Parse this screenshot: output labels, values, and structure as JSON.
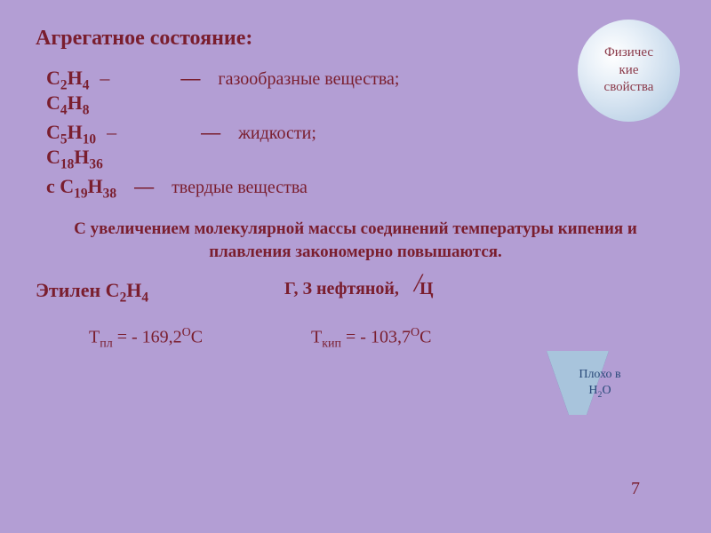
{
  "colors": {
    "background": "#b39ed4",
    "text_primary": "#7a1e2e",
    "circle_text": "#8b3a4a",
    "trap_border": "#3a5a8a",
    "trap_fill": "#a8c4dc",
    "trap_text": "#2a4a7a"
  },
  "badge": {
    "line1": "Физичес",
    "line2": "кие",
    "line3": "свойства"
  },
  "title": "Агрегатное состояние:",
  "formulas": {
    "f1a": "C",
    "f1b": "2",
    "f1c": "H",
    "f1d": "4",
    "dash1": "–",
    "sep1": "—",
    "d1": "газообразные вещества;",
    "f2a": "C",
    "f2b": "4",
    "f2c": "H",
    "f2d": "8",
    "f3a": "C",
    "f3b": "5",
    "f3c": "H",
    "f3d": "10",
    "dash2": "–",
    "sep2": "—",
    "d2": "жидкости;",
    "f4a": "C",
    "f4b": "18",
    "f4c": "H",
    "f4d": "36",
    "f5pre": "с ",
    "f5a": "C",
    "f5b": "19",
    "f5c": "H",
    "f5d": "38",
    "sep3": "—",
    "d3": "твердые вещества"
  },
  "statement": "С увеличением молекулярной массы соединений температуры кипения и плавления закономерно повышаются.",
  "ethylene": {
    "label": "Этилен C",
    "sub1": "2",
    "mid": "H",
    "sub2": "4"
  },
  "gas_desc": {
    "part1": "Г,   З нефтяной,",
    "part2": "Ц",
    "strike": "/"
  },
  "temps": {
    "tpl_label": "Т",
    "tpl_sub": "пл",
    "tpl_eq": " = - 169,2",
    "tpl_unit_sup": "О",
    "tpl_unit": "С",
    "tkip_label": "Т",
    "tkip_sub": "кип",
    "tkip_eq": " = - 103,7",
    "tkip_unit_sup": "О",
    "tkip_unit": "С"
  },
  "trapezoid": {
    "line1": "Плохо в",
    "line2a": "H",
    "line2b": "2",
    "line2c": "O"
  },
  "page": "7"
}
